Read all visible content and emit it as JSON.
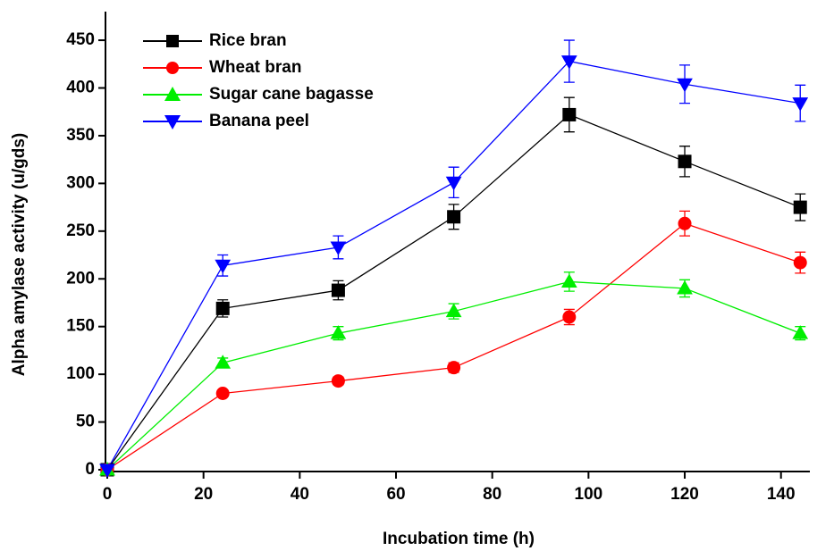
{
  "chart_data": {
    "type": "line",
    "x_label": "Incubation time (h)",
    "y_label": "Alpha amylase activity (u/gds)",
    "x": [
      0,
      24,
      48,
      72,
      96,
      120,
      144
    ],
    "series": [
      {
        "name": "Rice bran",
        "color": "#000000",
        "marker": "square",
        "values": [
          0,
          169,
          188,
          265,
          372,
          323,
          275
        ],
        "errors": [
          0,
          9,
          10,
          13,
          18,
          16,
          14
        ]
      },
      {
        "name": "Wheat bran",
        "color": "#ff0000",
        "marker": "circle",
        "values": [
          0,
          80,
          93,
          107,
          160,
          258,
          217
        ],
        "errors": [
          0,
          3,
          4,
          5,
          8,
          13,
          11
        ]
      },
      {
        "name": "Sugar cane bagasse",
        "color": "#00ee00",
        "marker": "triangle-up",
        "values": [
          0,
          112,
          143,
          166,
          197,
          190,
          143
        ],
        "errors": [
          0,
          5,
          7,
          8,
          10,
          9,
          7
        ]
      },
      {
        "name": "Banana peel",
        "color": "#0000ff",
        "marker": "triangle-down",
        "values": [
          0,
          214,
          233,
          301,
          428,
          404,
          384
        ],
        "errors": [
          0,
          11,
          12,
          16,
          22,
          20,
          19
        ]
      }
    ],
    "xlim": [
      0,
      146
    ],
    "xticks": [
      0,
      20,
      40,
      60,
      80,
      100,
      120,
      140
    ],
    "ylim": [
      0,
      480
    ],
    "yticks": [
      0,
      50,
      100,
      150,
      200,
      250,
      300,
      350,
      400,
      450
    ],
    "legend": "upper-left",
    "grid": false
  }
}
